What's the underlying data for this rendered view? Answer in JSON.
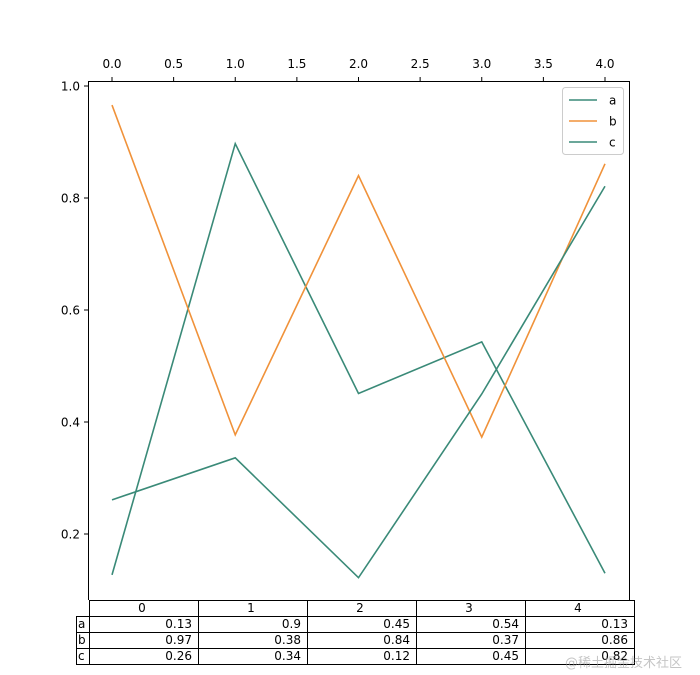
{
  "chart_data": {
    "type": "line",
    "title": "",
    "xlabel": "",
    "ylabel": "",
    "x": [
      0,
      1,
      2,
      3,
      4
    ],
    "xlim": [
      -0.19,
      4.2
    ],
    "ylim": [
      0.082,
      1.009
    ],
    "x_ticks": [
      "0.0",
      "0.5",
      "1.0",
      "1.5",
      "2.0",
      "2.5",
      "3.0",
      "3.5",
      "4.0"
    ],
    "x_tick_values": [
      0,
      0.5,
      1,
      1.5,
      2,
      2.5,
      3,
      3.5,
      4
    ],
    "x_axis_position": "top",
    "y_ticks": [
      "0.2",
      "0.4",
      "0.6",
      "0.8",
      "1.0"
    ],
    "y_tick_values": [
      0.2,
      0.4,
      0.6,
      0.8,
      1.0
    ],
    "grid": false,
    "legend_position": "upper right",
    "series": [
      {
        "name": "a",
        "color": "#3a8a78",
        "values": [
          0.127,
          0.897,
          0.451,
          0.543,
          0.13
        ]
      },
      {
        "name": "b",
        "color": "#f0923a",
        "values": [
          0.966,
          0.377,
          0.84,
          0.373,
          0.861
        ]
      },
      {
        "name": "c",
        "color": "#3a8a78",
        "values": [
          0.261,
          0.336,
          0.122,
          0.45,
          0.821
        ]
      }
    ],
    "table": {
      "col_labels": [
        "0",
        "1",
        "2",
        "3",
        "4"
      ],
      "rows": [
        {
          "label": "a",
          "cells": [
            "0.13",
            "0.9",
            "0.45",
            "0.54",
            "0.13"
          ]
        },
        {
          "label": "b",
          "cells": [
            "0.97",
            "0.38",
            "0.84",
            "0.37",
            "0.86"
          ]
        },
        {
          "label": "c",
          "cells": [
            "0.26",
            "0.34",
            "0.12",
            "0.45",
            "0.82"
          ]
        }
      ]
    }
  },
  "legend": {
    "items": [
      {
        "label": "a"
      },
      {
        "label": "b"
      },
      {
        "label": "c"
      }
    ]
  },
  "watermark": "@稀土掘金技术社区"
}
